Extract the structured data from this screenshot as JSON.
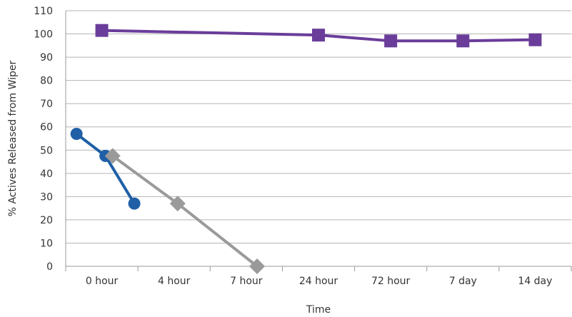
{
  "chart_data": {
    "type": "line",
    "title": "",
    "xlabel": "Time",
    "ylabel": "% Actives Released from Wiper",
    "categories": [
      "0 hour",
      "4 hour",
      "7 hour",
      "24 hour",
      "72 hour",
      "7 day",
      "14 day"
    ],
    "ylim": [
      0,
      110
    ],
    "yticks": [
      0,
      10,
      20,
      30,
      40,
      50,
      60,
      70,
      80,
      90,
      100,
      110
    ],
    "grid": true,
    "legend": "none",
    "series": [
      {
        "color": "#6a3d9a",
        "marker": "square",
        "points": [
          {
            "x": 0.5,
            "y": 101.5
          },
          {
            "x": 3.5,
            "y": 99.5
          },
          {
            "x": 4.5,
            "y": 97.0
          },
          {
            "x": 5.5,
            "y": 97.0
          },
          {
            "x": 6.5,
            "y": 97.5
          }
        ]
      },
      {
        "color": "#1f5fa6",
        "marker": "circle",
        "points": [
          {
            "x": 0.15,
            "y": 57.0
          },
          {
            "x": 0.55,
            "y": 47.5
          },
          {
            "x": 0.95,
            "y": 27.0
          }
        ]
      },
      {
        "color": "#9a9a9a",
        "marker": "diamond",
        "points": [
          {
            "x": 0.65,
            "y": 47.5
          },
          {
            "x": 1.55,
            "y": 27.0
          },
          {
            "x": 2.65,
            "y": 0.0
          }
        ]
      }
    ]
  }
}
